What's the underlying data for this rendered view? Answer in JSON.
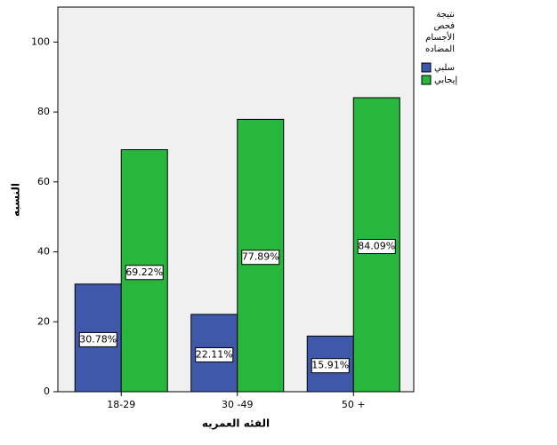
{
  "chart_data": {
    "type": "bar",
    "x_label": "الفئه العمريه",
    "y_label": "النسبه",
    "legend_title": [
      "نتيجة",
      "فحص",
      "الأجسام",
      "المضاده"
    ],
    "categories": [
      "18-29",
      "30 -49",
      "50 +"
    ],
    "series": [
      {
        "name": "سلبي",
        "color": "#3f58aa",
        "values": [
          30.78,
          22.11,
          15.91
        ],
        "value_labels": [
          "30.78%",
          "22.11%",
          "15.91%"
        ]
      },
      {
        "name": "إيجابي",
        "color": "#27b73c",
        "values": [
          69.22,
          77.89,
          84.09
        ],
        "value_labels": [
          "69.22%",
          "77.89%",
          "84.09%"
        ]
      }
    ],
    "ylim": [
      0,
      110
    ],
    "yticks": [
      0,
      20,
      40,
      60,
      80,
      100
    ],
    "legend": "right"
  }
}
